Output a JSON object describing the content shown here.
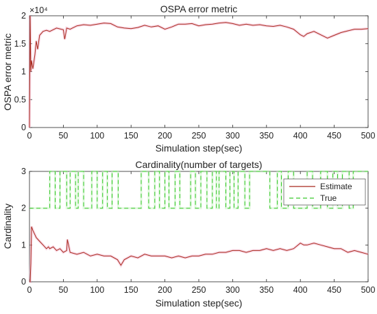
{
  "chart_data": [
    {
      "type": "line",
      "title": "OSPA error metric",
      "xlabel": "Simulation step(sec)",
      "ylabel": "OSPA error metric",
      "y_exponent_label": "×10⁴",
      "xlim": [
        0,
        500
      ],
      "ylim": [
        0,
        20000
      ],
      "grid": false,
      "xticks": [
        "0",
        "50",
        "100",
        "150",
        "200",
        "250",
        "300",
        "350",
        "400",
        "450",
        "500"
      ],
      "yticks": [
        "0",
        "0.5",
        "1",
        "1.5",
        "2"
      ],
      "series": [
        {
          "color": "#a8281c",
          "x": [
            0,
            1,
            2,
            3,
            5,
            8,
            10,
            12,
            15,
            20,
            25,
            30,
            40,
            50,
            52,
            55,
            60,
            70,
            80,
            90,
            100,
            110,
            120,
            130,
            140,
            150,
            160,
            170,
            180,
            190,
            200,
            210,
            220,
            230,
            240,
            250,
            260,
            270,
            280,
            290,
            300,
            310,
            320,
            330,
            340,
            350,
            360,
            370,
            380,
            390,
            400,
            405,
            410,
            420,
            430,
            440,
            450,
            460,
            470,
            480,
            490,
            500
          ],
          "y": [
            0,
            20000,
            10000,
            12000,
            10500,
            13000,
            15500,
            14000,
            16500,
            17200,
            17400,
            17200,
            17800,
            17500,
            15800,
            17800,
            17600,
            18200,
            18400,
            18300,
            18500,
            18700,
            18600,
            18000,
            17800,
            17700,
            17900,
            18300,
            18000,
            18200,
            17600,
            18000,
            18500,
            18500,
            18600,
            18200,
            18400,
            18500,
            18700,
            18800,
            18600,
            18300,
            18500,
            18300,
            18400,
            18200,
            18100,
            18300,
            18000,
            17600,
            16600,
            16300,
            16800,
            17200,
            16600,
            16000,
            16500,
            17000,
            17300,
            17600,
            17600,
            17700
          ]
        }
      ]
    },
    {
      "type": "line",
      "title": "Cardinality(number of targets)",
      "xlabel": "Simulation step(sec)",
      "ylabel": "Cardinality",
      "xlim": [
        0,
        500
      ],
      "ylim": [
        0,
        3
      ],
      "grid": false,
      "legend": "top-right",
      "xticks": [
        "0",
        "50",
        "100",
        "150",
        "200",
        "250",
        "300",
        "350",
        "400",
        "450",
        "500"
      ],
      "yticks": [
        "0",
        "1",
        "2",
        "3"
      ],
      "series": [
        {
          "name": "Estimate",
          "color": "#a8281c",
          "x": [
            0,
            1,
            2,
            3,
            5,
            10,
            15,
            20,
            25,
            28,
            30,
            35,
            40,
            45,
            50,
            55,
            56,
            60,
            70,
            80,
            90,
            100,
            110,
            120,
            130,
            135,
            140,
            150,
            160,
            170,
            180,
            190,
            200,
            210,
            220,
            230,
            240,
            250,
            260,
            270,
            280,
            290,
            300,
            310,
            320,
            330,
            340,
            350,
            360,
            370,
            380,
            390,
            400,
            405,
            410,
            420,
            430,
            440,
            450,
            460,
            470,
            480,
            490,
            500
          ],
          "y": [
            0,
            0,
            0.5,
            1.5,
            1.4,
            1.2,
            1.1,
            1.0,
            0.9,
            0.95,
            0.9,
            0.95,
            0.85,
            0.9,
            0.8,
            0.85,
            1.15,
            0.8,
            0.75,
            0.8,
            0.7,
            0.75,
            0.7,
            0.7,
            0.6,
            0.45,
            0.6,
            0.7,
            0.65,
            0.75,
            0.7,
            0.7,
            0.7,
            0.65,
            0.7,
            0.65,
            0.7,
            0.7,
            0.75,
            0.75,
            0.8,
            0.8,
            0.85,
            0.85,
            0.8,
            0.85,
            0.85,
            0.9,
            0.85,
            0.9,
            0.85,
            0.9,
            1.05,
            1.0,
            1.0,
            1.05,
            1.0,
            0.95,
            0.9,
            0.9,
            0.8,
            0.85,
            0.8,
            0.75
          ]
        },
        {
          "name": "True",
          "color": "#37c82a",
          "dash": "dashed",
          "x": [
            0,
            30,
            30,
            38,
            38,
            45,
            45,
            55,
            55,
            60,
            60,
            68,
            68,
            72,
            72,
            80,
            80,
            92,
            92,
            100,
            100,
            108,
            108,
            115,
            115,
            122,
            122,
            131,
            131,
            165,
            165,
            176,
            176,
            185,
            185,
            192,
            192,
            200,
            200,
            206,
            206,
            215,
            215,
            222,
            222,
            238,
            238,
            245,
            245,
            253,
            253,
            262,
            262,
            270,
            270,
            276,
            276,
            280,
            280,
            290,
            290,
            296,
            296,
            302,
            302,
            308,
            308,
            318,
            318,
            325,
            325,
            355,
            355,
            366,
            366,
            372,
            372,
            382,
            382,
            390,
            390,
            410,
            410,
            418,
            418,
            430,
            430,
            440,
            440,
            448,
            448,
            455,
            455,
            462,
            462,
            472,
            472,
            478,
            478,
            500
          ],
          "y": [
            2,
            2,
            3,
            3,
            2,
            2,
            3,
            3,
            2,
            2,
            3,
            3,
            2,
            2,
            3,
            3,
            2,
            2,
            3,
            3,
            2,
            2,
            3,
            3,
            2,
            2,
            3,
            3,
            2,
            2,
            3,
            3,
            2,
            2,
            3,
            3,
            2,
            2,
            3,
            3,
            2,
            2,
            3,
            3,
            2,
            2,
            3,
            3,
            2,
            2,
            3,
            3,
            2,
            2,
            3,
            3,
            2,
            2,
            3,
            3,
            2,
            2,
            3,
            3,
            2,
            2,
            3,
            3,
            2,
            2,
            3,
            3,
            2,
            2,
            3,
            3,
            2,
            2,
            3,
            3,
            2,
            2,
            3,
            3,
            2,
            2,
            3,
            3,
            2,
            2,
            3,
            3,
            2,
            2,
            3,
            3,
            2,
            2,
            3,
            3
          ]
        }
      ]
    }
  ]
}
